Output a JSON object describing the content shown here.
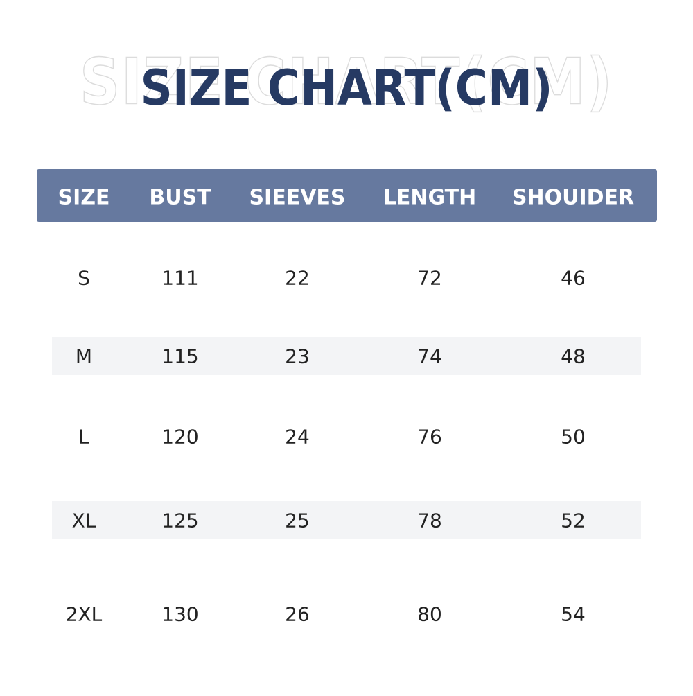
{
  "header": {
    "title": "SIZE CHART(CM)"
  },
  "table": {
    "columns": [
      "SIZE",
      "BUST",
      "SIEEVES",
      "LENGTH",
      "SHOUIDER"
    ],
    "rows": [
      [
        "S",
        111,
        22,
        72,
        46
      ],
      [
        "M",
        115,
        23,
        74,
        48
      ],
      [
        "L",
        120,
        24,
        76,
        50
      ],
      [
        "XL",
        125,
        25,
        78,
        52
      ],
      [
        "2XL",
        130,
        26,
        80,
        54
      ]
    ]
  }
}
